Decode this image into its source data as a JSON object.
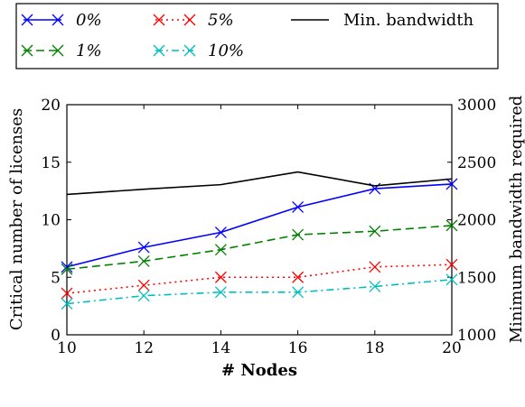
{
  "chart_data": {
    "type": "line",
    "x": [
      10,
      12,
      14,
      16,
      18,
      20
    ],
    "xlabel": "# Nodes",
    "ylabel": "Critical number of licenses",
    "y2label": "Minimum bandwidth required",
    "xlim": [
      10,
      20
    ],
    "ylim": [
      0,
      20
    ],
    "y2lim": [
      1000,
      3000
    ],
    "xticks": [
      "10",
      "12",
      "14",
      "16",
      "18",
      "20"
    ],
    "yticks": [
      "0",
      "5",
      "10",
      "15",
      "20"
    ],
    "y2ticks": [
      "1000",
      "1500",
      "2000",
      "2500",
      "3000"
    ],
    "grid": false,
    "legend_position": "top",
    "series": [
      {
        "name": "0%",
        "axis": "left",
        "values": [
          5.9,
          7.6,
          8.9,
          11.1,
          12.7,
          13.1
        ],
        "color": "#0000ff",
        "dash": "solid",
        "marker": "x"
      },
      {
        "name": "1%",
        "axis": "left",
        "values": [
          5.7,
          6.4,
          7.4,
          8.7,
          9.0,
          9.5
        ],
        "color": "#008000",
        "dash": "dashed",
        "marker": "x"
      },
      {
        "name": "5%",
        "axis": "left",
        "values": [
          3.6,
          4.3,
          5.0,
          5.0,
          5.9,
          6.1
        ],
        "color": "#ff0000",
        "dash": "dotted",
        "marker": "x"
      },
      {
        "name": "10%",
        "axis": "left",
        "values": [
          2.7,
          3.4,
          3.7,
          3.7,
          4.2,
          4.8
        ],
        "color": "#00bfbf",
        "dash": "dashdot",
        "marker": "x"
      },
      {
        "name": "Min. bandwidth",
        "axis": "right",
        "values": [
          2220,
          2265,
          2305,
          2415,
          2295,
          2355
        ],
        "color": "#000000",
        "dash": "solid",
        "marker": "none"
      }
    ]
  }
}
